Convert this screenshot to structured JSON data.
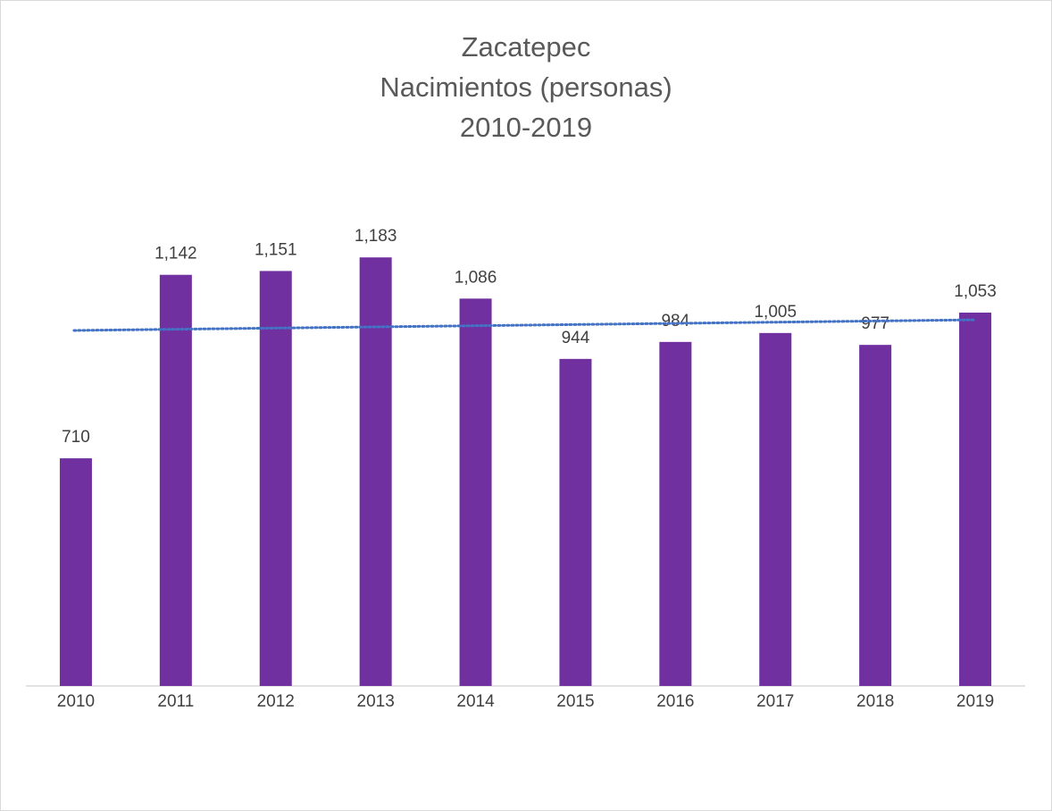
{
  "chart_data": {
    "type": "bar",
    "title": [
      "Zacatepec",
      "Nacimientos (personas)",
      "2010-2019"
    ],
    "categories": [
      "2010",
      "2011",
      "2012",
      "2013",
      "2014",
      "2015",
      "2016",
      "2017",
      "2018",
      "2019"
    ],
    "values": [
      710,
      1142,
      1151,
      1183,
      1086,
      944,
      984,
      1005,
      977,
      1053
    ],
    "value_labels": [
      "710",
      "1,142",
      "1,151",
      "1,183",
      "1,086",
      "944",
      "984",
      "1,005",
      "977",
      "1,053"
    ],
    "color": "#7030a0",
    "ylim": [
      174,
      1400
    ],
    "grid": false,
    "trendline": {
      "type": "linear",
      "color": "#4472c4",
      "values": [
        1011,
        1036
      ]
    }
  }
}
